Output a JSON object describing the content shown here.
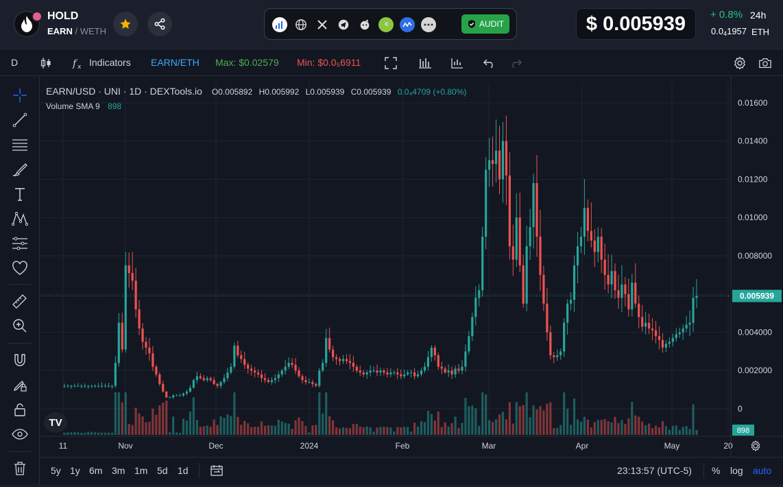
{
  "header": {
    "token_symbol": "HOLD",
    "pair_base": "EARN",
    "pair_sep": " / ",
    "pair_quote": "WETH",
    "audit_label": "AUDIT",
    "price_usd": "$ 0.005939",
    "change_pct": "+ 0.8%",
    "change_period": "24h",
    "price_eth_prefix": "0.0",
    "price_eth_sub": "4",
    "price_eth_digits": "1957",
    "price_eth_unit": "ETH",
    "social_icons": [
      "chart-icon",
      "globe-icon",
      "x-icon",
      "telegram-icon",
      "reddit-icon",
      "coingecko-icon",
      "coinmarketcap-icon",
      "more-icon"
    ]
  },
  "toolbar": {
    "interval": "D",
    "indicators_label": "Indicators",
    "pair_label": "EARN/ETH",
    "max_label": "Max: $0.02579",
    "min_label": "Min: $0.0₅6911"
  },
  "legend": {
    "title": "EARN/USD · UNI · 1D · DEXTools.io",
    "open": "O0.005892",
    "high": "H0.005992",
    "low": "L0.005939",
    "close": "C0.005939",
    "change": "0.0₄4709 (+0.80%)",
    "volume_label": "Volume SMA 9",
    "volume_value": "898"
  },
  "bottom": {
    "ranges": [
      "5y",
      "1y",
      "6m",
      "3m",
      "1m",
      "5d",
      "1d"
    ],
    "clock": "23:13:57 (UTC-5)",
    "percent_label": "%",
    "log_label": "log",
    "auto_label": "auto"
  },
  "colors": {
    "up": "#26a69a",
    "down": "#ef5350",
    "background": "#131722",
    "grid": "#1f2430",
    "audit_green": "#27a248",
    "change_green": "#26c281",
    "accent_blue": "#2962ff"
  },
  "chart_data": {
    "type": "candlestick",
    "title": "EARN/USD · UNI · 1D · DEXTools.io",
    "y_ticks": [
      "0.01600",
      "0.01400",
      "0.01200",
      "0.01000",
      "0.008000",
      "0.006000",
      "0.004000",
      "0.002000",
      "0"
    ],
    "x_ticks": [
      "11",
      "Nov",
      "Dec",
      "2024",
      "Feb",
      "Mar",
      "Apr",
      "May",
      "20"
    ],
    "ylim": [
      0,
      0.017
    ],
    "last_price_label": "0.005939",
    "volume_label": "898",
    "grid": true,
    "close_series": [
      0.0012,
      0.0012,
      0.0012,
      0.0012,
      0.0012,
      0.0012,
      0.0012,
      0.0012,
      0.0012,
      0.0012,
      0.0012,
      0.0012,
      0.0012,
      0.0012,
      0.0012,
      0.0024,
      0.0045,
      0.0031,
      0.0075,
      0.0071,
      0.0067,
      0.0052,
      0.0042,
      0.0035,
      0.0032,
      0.0029,
      0.0022,
      0.0018,
      0.0013,
      0.0009,
      0.0006,
      0.0006,
      0.0007,
      0.0007,
      0.0007,
      0.0008,
      0.0009,
      0.0011,
      0.0015,
      0.0017,
      0.0016,
      0.0015,
      0.0016,
      0.0015,
      0.0013,
      0.0012,
      0.0014,
      0.0016,
      0.0019,
      0.0022,
      0.0033,
      0.0028,
      0.0026,
      0.0023,
      0.0021,
      0.002,
      0.0019,
      0.0018,
      0.0016,
      0.0015,
      0.0014,
      0.0015,
      0.0016,
      0.0018,
      0.002,
      0.0022,
      0.0024,
      0.0023,
      0.002,
      0.0017,
      0.0015,
      0.0014,
      0.0014,
      0.0013,
      0.0012,
      0.002,
      0.0024,
      0.0037,
      0.0031,
      0.0027,
      0.0026,
      0.0025,
      0.0026,
      0.0025,
      0.0024,
      0.0022,
      0.002,
      0.0019,
      0.0018,
      0.0019,
      0.002,
      0.002,
      0.0019,
      0.002,
      0.0019,
      0.0018,
      0.0019,
      0.0019,
      0.0018,
      0.0017,
      0.0018,
      0.0019,
      0.0019,
      0.0017,
      0.0018,
      0.002,
      0.0022,
      0.0027,
      0.0032,
      0.0028,
      0.0022,
      0.0021,
      0.0019,
      0.002,
      0.0018,
      0.0021,
      0.002,
      0.0022,
      0.003,
      0.0038,
      0.0048,
      0.0058,
      0.0062,
      0.009,
      0.0125,
      0.013,
      0.0128,
      0.0135,
      0.012,
      0.014,
      0.0122,
      0.0085,
      0.0078,
      0.01,
      0.0075,
      0.0055,
      0.0085,
      0.0095,
      0.0118,
      0.009,
      0.007,
      0.0055,
      0.004,
      0.0028,
      0.0027,
      0.0028,
      0.003,
      0.0045,
      0.0055,
      0.0057,
      0.0075,
      0.0085,
      0.009,
      0.0105,
      0.0093,
      0.0088,
      0.0082,
      0.009,
      0.0078,
      0.007,
      0.0065,
      0.0072,
      0.0062,
      0.0058,
      0.0065,
      0.006,
      0.0052,
      0.0066,
      0.0055,
      0.0048,
      0.0043,
      0.0045,
      0.0042,
      0.0041,
      0.0038,
      0.0036,
      0.0032,
      0.0034,
      0.0035,
      0.0037,
      0.0039,
      0.004,
      0.0042,
      0.0044,
      0.0045,
      0.0058,
      0.0059
    ]
  }
}
